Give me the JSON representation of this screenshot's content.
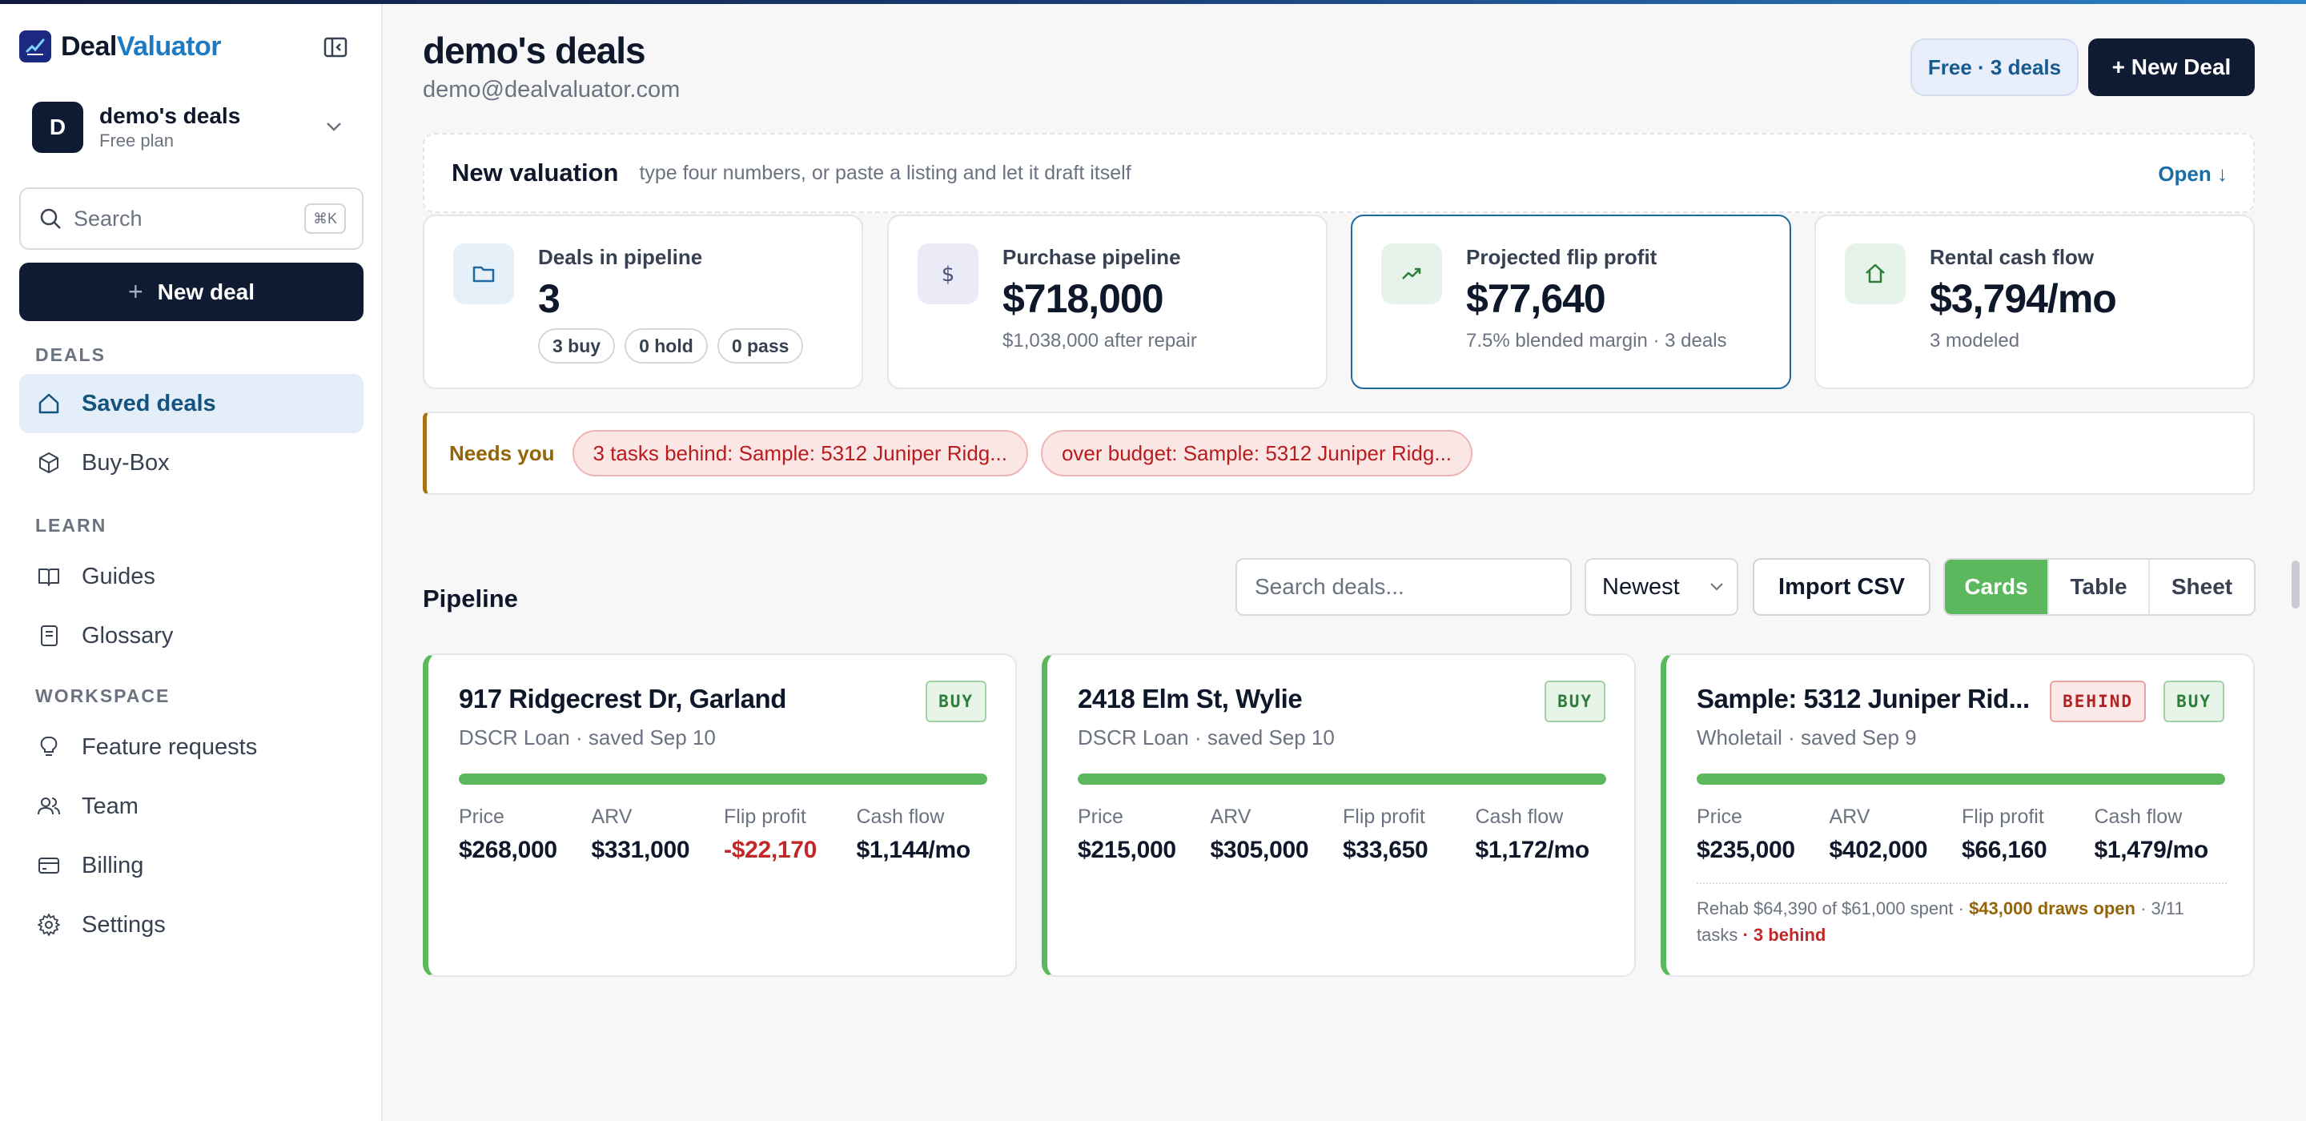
{
  "brand": {
    "name_part1": "Deal",
    "name_part2": "Valuator"
  },
  "workspace": {
    "initial": "D",
    "name": "demo's deals",
    "plan": "Free plan"
  },
  "sidebar": {
    "search_placeholder": "Search",
    "search_shortcut": "⌘K",
    "new_deal_label": "New deal",
    "sections": {
      "deals": "DEALS",
      "learn": "LEARN",
      "workspace": "WORKSPACE"
    },
    "items": {
      "saved_deals": "Saved deals",
      "buy_box": "Buy-Box",
      "guides": "Guides",
      "glossary": "Glossary",
      "feature_requests": "Feature requests",
      "team": "Team",
      "billing": "Billing",
      "settings": "Settings"
    }
  },
  "header": {
    "title": "demo's deals",
    "email": "demo@dealvaluator.com",
    "plan_badge": "Free · 3 deals",
    "new_deal_button": "+ New Deal"
  },
  "valuation": {
    "title": "New valuation",
    "hint": "type four numbers, or paste a listing and let it draft itself",
    "open_label": "Open ↓"
  },
  "stats": [
    {
      "label": "Deals in pipeline",
      "value": "3",
      "chips": [
        "3 buy",
        "0 hold",
        "0 pass"
      ]
    },
    {
      "label": "Purchase pipeline",
      "value": "$718,000",
      "sub": "$1,038,000 after repair"
    },
    {
      "label": "Projected flip profit",
      "value": "$77,640",
      "sub": "7.5% blended margin · 3 deals"
    },
    {
      "label": "Rental cash flow",
      "value": "$3,794/mo",
      "sub": "3 modeled"
    }
  ],
  "needs_you": {
    "label": "Needs you",
    "alerts": [
      "3 tasks behind: Sample: 5312 Juniper Ridg...",
      "over budget: Sample: 5312 Juniper Ridg..."
    ]
  },
  "pipeline": {
    "title": "Pipeline",
    "search_placeholder": "Search deals...",
    "sort_value": "Newest",
    "import_label": "Import CSV",
    "views": [
      "Cards",
      "Table",
      "Sheet"
    ],
    "active_view": "Cards",
    "metric_labels": [
      "Price",
      "ARV",
      "Flip profit",
      "Cash flow"
    ],
    "cards": [
      {
        "title": "917 Ridgecrest Dr, Garland",
        "sub": "DSCR Loan · saved Sep 10",
        "badges": [
          "BUY"
        ],
        "progress": 1.0,
        "price": "$268,000",
        "arv": "$331,000",
        "flip": "-$22,170",
        "cash": "$1,144/mo"
      },
      {
        "title": "2418 Elm St, Wylie",
        "sub": "DSCR Loan · saved Sep 10",
        "badges": [
          "BUY"
        ],
        "progress": 1.0,
        "price": "$215,000",
        "arv": "$305,000",
        "flip": "$33,650",
        "cash": "$1,172/mo"
      },
      {
        "title": "Sample: 5312 Juniper Rid...",
        "sub": "Wholetail · saved Sep 9",
        "badges": [
          "BEHIND",
          "BUY"
        ],
        "progress": 1.0,
        "price": "$235,000",
        "arv": "$402,000",
        "flip": "$66,160",
        "cash": "$1,479/mo",
        "rehab": {
          "spent": "Rehab $64,390 of $61,000 spent ·",
          "draws": "$43,000 draws open",
          "tasks": "· 3/11 tasks",
          "behind": "· 3 behind"
        }
      }
    ]
  },
  "colors": {
    "accent": "#5cb85c",
    "navy": "#0f1b33",
    "brand_blue": "#1d7bc4",
    "warning": "#946408",
    "danger": "#c0282a"
  }
}
